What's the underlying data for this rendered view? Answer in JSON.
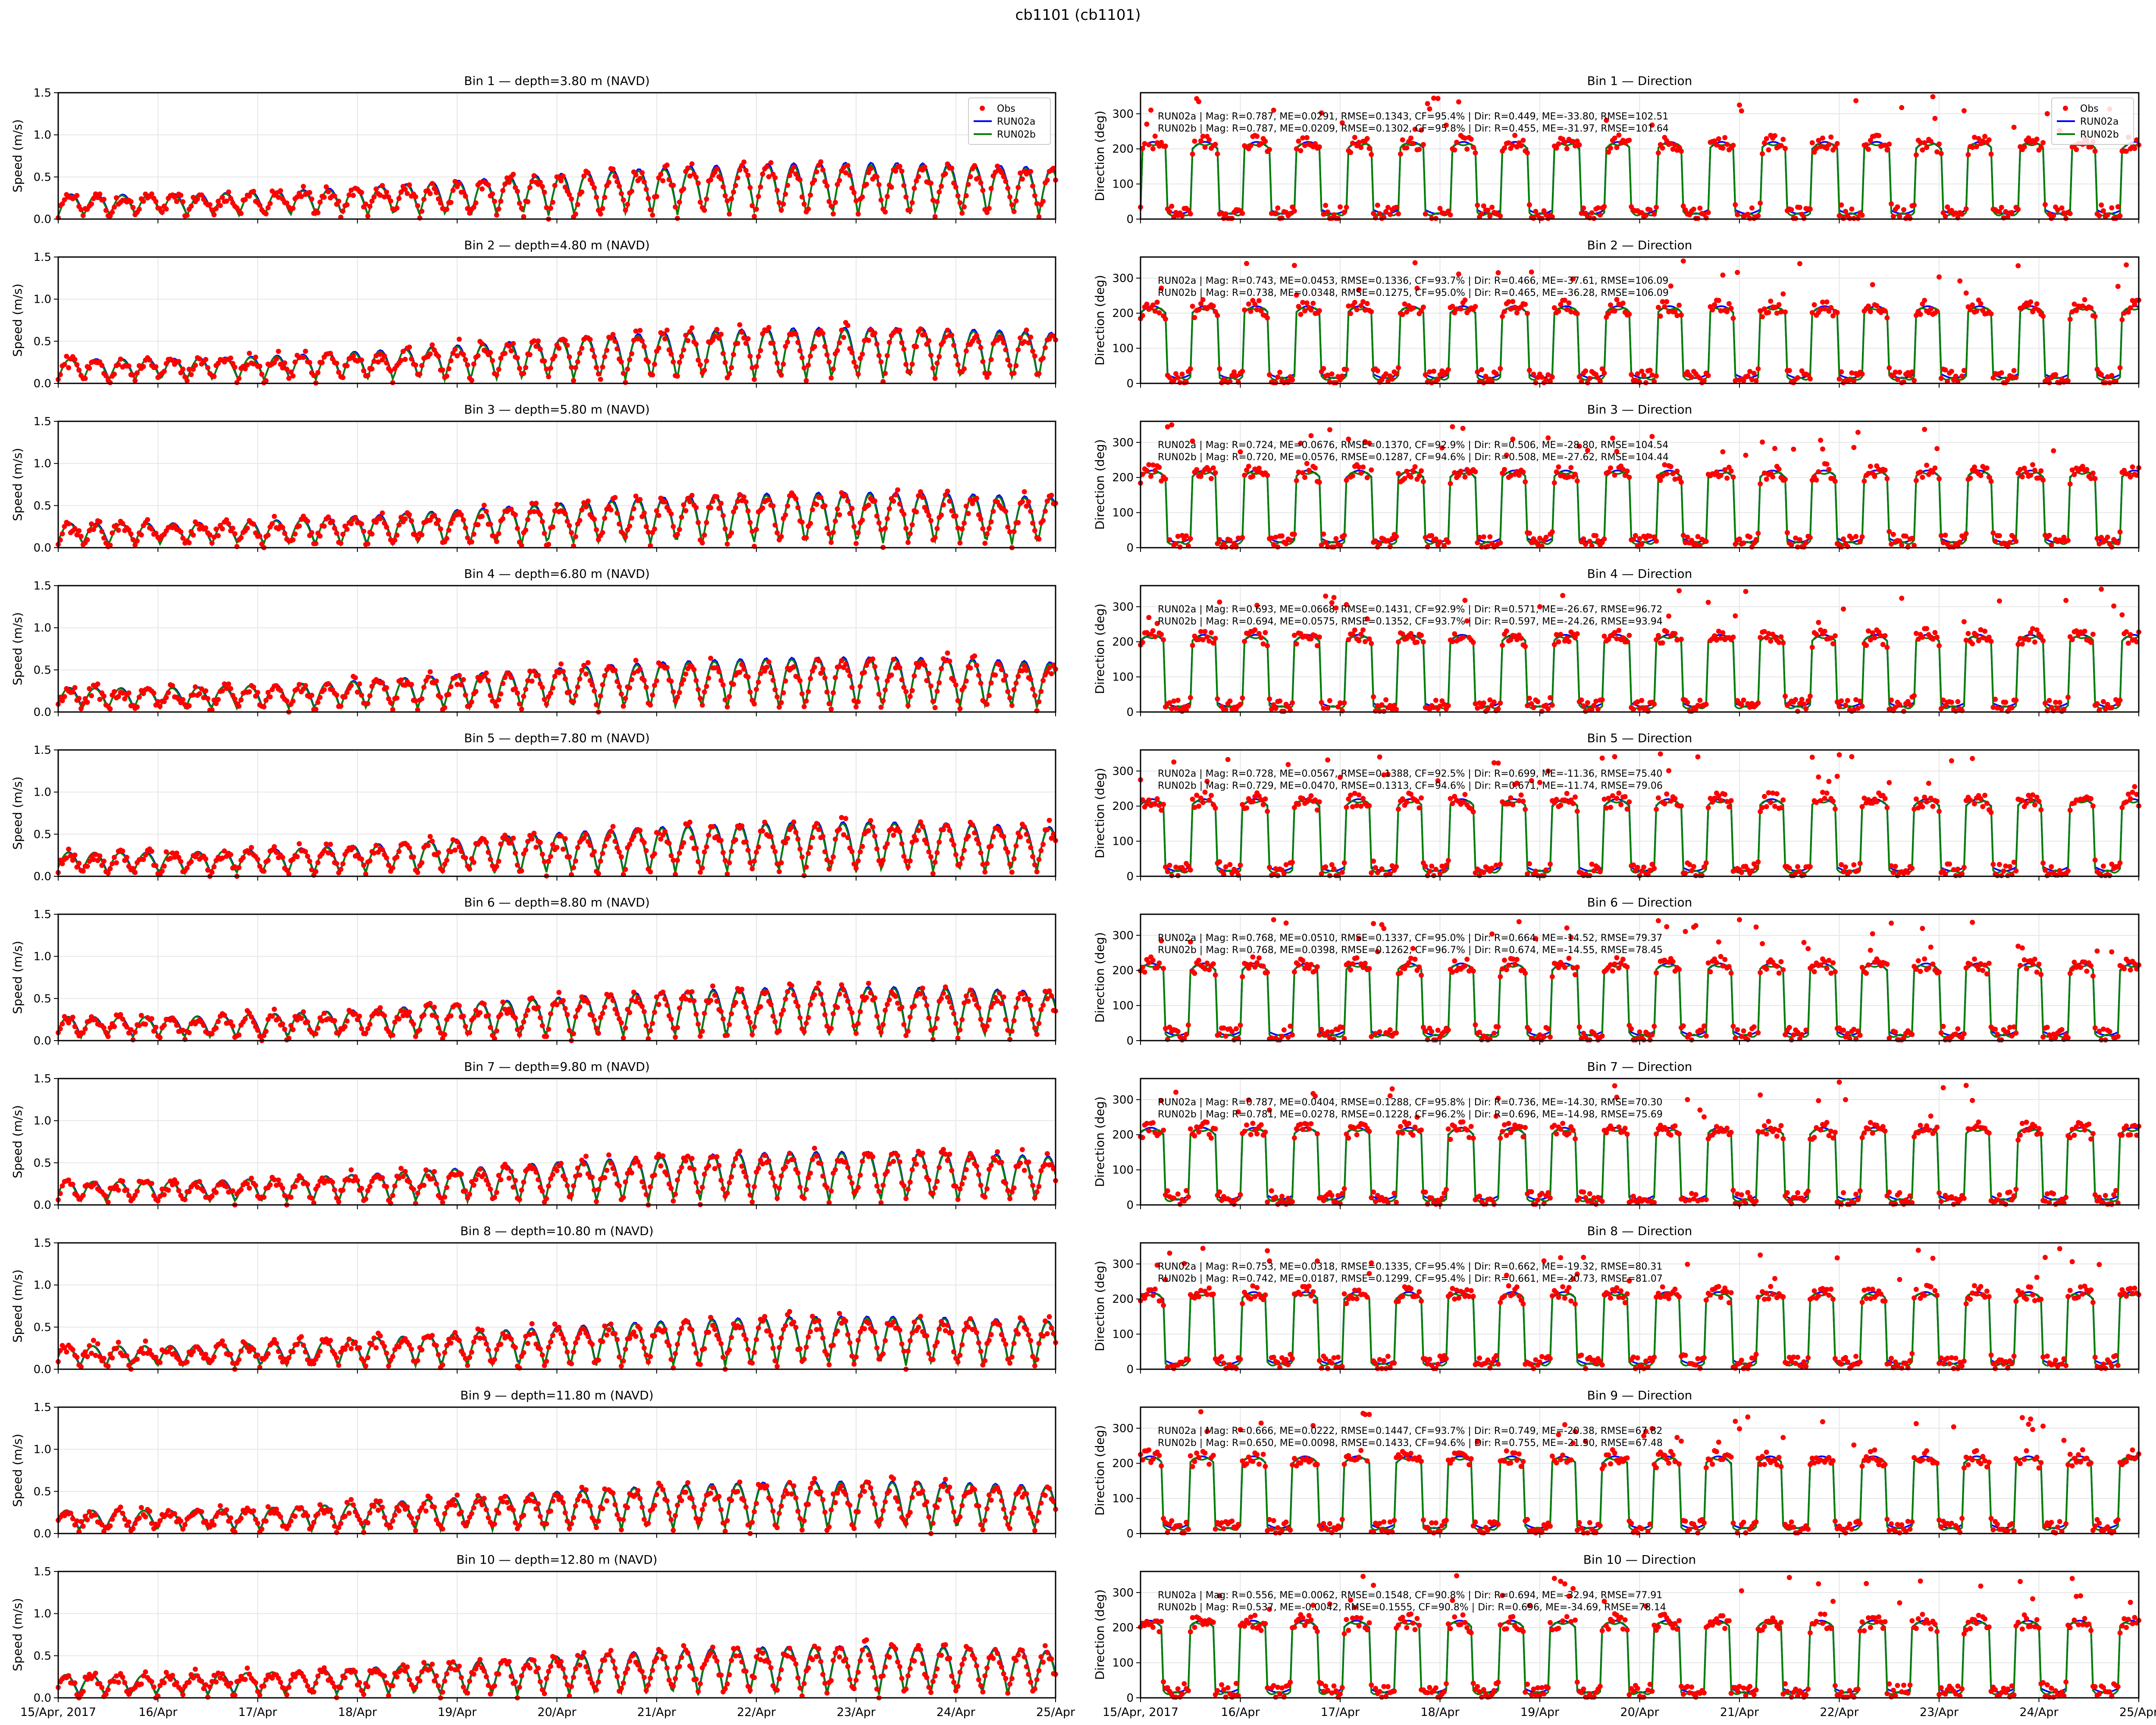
{
  "figure": {
    "title": "cb1101 (cb1101)",
    "date_ticks": [
      "15/Apr, 2017",
      "16/Apr",
      "17/Apr",
      "18/Apr",
      "19/Apr",
      "20/Apr",
      "21/Apr",
      "22/Apr",
      "23/Apr",
      "24/Apr",
      "25/Apr"
    ],
    "speed_ylabel": "Speed (m/s)",
    "dir_ylabel": "Direction (deg)",
    "speed_yticks": [
      "0.0",
      "0.5",
      "1.0",
      "1.5"
    ],
    "dir_yticks": [
      "0",
      "100",
      "200",
      "300"
    ],
    "colors": {
      "obs": "#ff0000",
      "run02a": "#0000ff",
      "run02b": "#008000",
      "grid": "#e6e6e6"
    }
  },
  "chart_data": {
    "type": "line",
    "x_range": [
      "2017-04-15",
      "2017-04-25"
    ],
    "speed_ylim": [
      0,
      1.5
    ],
    "dir_ylim": [
      0,
      360
    ],
    "grid": true,
    "legend": {
      "entries": [
        "Obs",
        "RUN02a",
        "RUN02b"
      ],
      "placement": "top-right",
      "shown_in": "bin 1 panels"
    },
    "series": [
      {
        "name": "Obs",
        "style": "markers"
      },
      {
        "name": "RUN02a",
        "style": "line"
      },
      {
        "name": "RUN02b",
        "style": "line"
      }
    ],
    "bins": [
      {
        "speed_title": "Bin 1 — depth=3.80 m (NAVD)",
        "dir_title": "Bin 1 — Direction",
        "stats": [
          "RUN02a | Mag: R=0.787, ME=0.0291, RMSE=0.1343, CF=95.4% | Dir: R=0.449, ME=-33.80, RMSE=102.51",
          "RUN02b | Mag: R=0.787, ME=0.0209, RMSE=0.1302, CF=95.8% | Dir: R=0.455, ME=-31.97, RMSE=101.64"
        ]
      },
      {
        "speed_title": "Bin 2 — depth=4.80 m (NAVD)",
        "dir_title": "Bin 2 — Direction",
        "stats": [
          "RUN02a | Mag: R=0.743, ME=0.0453, RMSE=0.1336, CF=93.7% | Dir: R=0.466, ME=-37.61, RMSE=106.09",
          "RUN02b | Mag: R=0.738, ME=0.0348, RMSE=0.1275, CF=95.0% | Dir: R=0.465, ME=-36.28, RMSE=106.09"
        ]
      },
      {
        "speed_title": "Bin 3 — depth=5.80 m (NAVD)",
        "dir_title": "Bin 3 — Direction",
        "stats": [
          "RUN02a | Mag: R=0.724, ME=0.0676, RMSE=0.1370, CF=92.9% | Dir: R=0.506, ME=-28.80, RMSE=104.54",
          "RUN02b | Mag: R=0.720, ME=0.0576, RMSE=0.1287, CF=94.6% | Dir: R=0.508, ME=-27.62, RMSE=104.44"
        ]
      },
      {
        "speed_title": "Bin 4 — depth=6.80 m (NAVD)",
        "dir_title": "Bin 4 — Direction",
        "stats": [
          "RUN02a | Mag: R=0.693, ME=0.0668, RMSE=0.1431, CF=92.9% | Dir: R=0.571, ME=-26.67, RMSE=96.72",
          "RUN02b | Mag: R=0.694, ME=0.0575, RMSE=0.1352, CF=93.7% | Dir: R=0.597, ME=-24.26, RMSE=93.94"
        ]
      },
      {
        "speed_title": "Bin 5 — depth=7.80 m (NAVD)",
        "dir_title": "Bin 5 — Direction",
        "stats": [
          "RUN02a | Mag: R=0.728, ME=0.0567, RMSE=0.1388, CF=92.5% | Dir: R=0.699, ME=-11.36, RMSE=75.40",
          "RUN02b | Mag: R=0.729, ME=0.0470, RMSE=0.1313, CF=94.6% | Dir: R=0.671, ME=-11.74, RMSE=79.06"
        ]
      },
      {
        "speed_title": "Bin 6 — depth=8.80 m (NAVD)",
        "dir_title": "Bin 6 — Direction",
        "stats": [
          "RUN02a | Mag: R=0.768, ME=0.0510, RMSE=0.1337, CF=95.0% | Dir: R=0.664, ME=-14.52, RMSE=79.37",
          "RUN02b | Mag: R=0.768, ME=0.0398, RMSE=0.1262, CF=96.7% | Dir: R=0.674, ME=-14.55, RMSE=78.45"
        ]
      },
      {
        "speed_title": "Bin 7 — depth=9.80 m (NAVD)",
        "dir_title": "Bin 7 — Direction",
        "stats": [
          "RUN02a | Mag: R=0.787, ME=0.0404, RMSE=0.1288, CF=95.8% | Dir: R=0.736, ME=-14.30, RMSE=70.30",
          "RUN02b | Mag: R=0.781, ME=0.0278, RMSE=0.1228, CF=96.2% | Dir: R=0.696, ME=-14.98, RMSE=75.69"
        ]
      },
      {
        "speed_title": "Bin 8 — depth=10.80 m (NAVD)",
        "dir_title": "Bin 8 — Direction",
        "stats": [
          "RUN02a | Mag: R=0.753, ME=0.0318, RMSE=0.1335, CF=95.4% | Dir: R=0.662, ME=-19.32, RMSE=80.31",
          "RUN02b | Mag: R=0.742, ME=0.0187, RMSE=0.1299, CF=95.4% | Dir: R=0.661, ME=-20.73, RMSE=81.07"
        ]
      },
      {
        "speed_title": "Bin 9 — depth=11.80 m (NAVD)",
        "dir_title": "Bin 9 — Direction",
        "stats": [
          "RUN02a | Mag: R=0.666, ME=0.0222, RMSE=0.1447, CF=93.7% | Dir: R=0.749, ME=-20.38, RMSE=67.82",
          "RUN02b | Mag: R=0.650, ME=0.0098, RMSE=0.1433, CF=94.6% | Dir: R=0.755, ME=-21.50, RMSE=67.48"
        ]
      },
      {
        "speed_title": "Bin 10 — depth=12.80 m (NAVD)",
        "dir_title": "Bin 10 — Direction",
        "stats": [
          "RUN02a | Mag: R=0.556, ME=0.0062, RMSE=0.1548, CF=90.8% | Dir: R=0.694, ME=-32.94, RMSE=77.91",
          "RUN02b | Mag: R=0.537, ME=-0.0042, RMSE=0.1555, CF=90.8% | Dir: R=0.696, ME=-34.69, RMSE=78.14"
        ]
      }
    ]
  }
}
